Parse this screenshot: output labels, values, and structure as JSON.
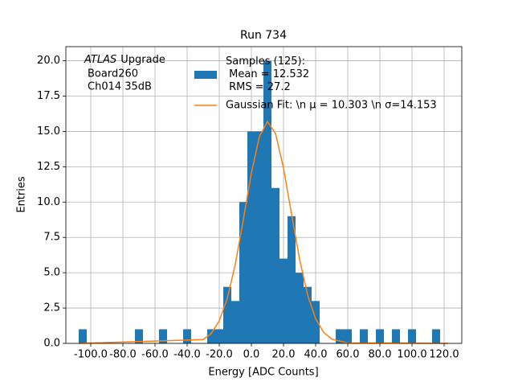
{
  "chart_data": {
    "type": "histogram",
    "title": "Run 734",
    "x_label": "Energy [ADC Counts]",
    "y_label": "Entries",
    "annotation": [
      "ATLAS",
      "Upgrade",
      "Board260",
      "Ch014 35dB"
    ],
    "bins": [
      -107.5,
      -102.5,
      -97.5,
      -92.5,
      -87.5,
      -82.5,
      -77.5,
      -72.5,
      -67.5,
      -62.5,
      -57.5,
      -52.5,
      -47.5,
      -42.5,
      -37.5,
      -32.5,
      -27.5,
      -22.5,
      -17.5,
      -12.5,
      -7.5,
      -2.5,
      2.5,
      7.5,
      12.5,
      17.5,
      22.5,
      27.5,
      32.5,
      37.5,
      42.5,
      47.5,
      52.5,
      57.5,
      62.5,
      67.5,
      72.5,
      77.5,
      82.5,
      87.5,
      92.5,
      97.5,
      102.5,
      107.5,
      112.5,
      117.5,
      122.5
    ],
    "counts": [
      1,
      0,
      0,
      0,
      0,
      0,
      0,
      1,
      0,
      0,
      1,
      0,
      0,
      1,
      0,
      0,
      1,
      1,
      4,
      3,
      10,
      15,
      15,
      20,
      11,
      6,
      9,
      5,
      4,
      3,
      0,
      0,
      1,
      1,
      0,
      1,
      0,
      1,
      0,
      1,
      0,
      1,
      0,
      0,
      1,
      0
    ],
    "color": "#1f77b4",
    "hist_name": "Samples (125):\n Mean = 12.532\n RMS = 27.2",
    "series": [
      {
        "name": "Gaussian Fit: \\n μ = 10.303 \\n σ=14.153",
        "color": "#ff7f0e",
        "x": [
          -107.5,
          -30,
          -25,
          -20,
          -15,
          -10,
          -5,
          0,
          5,
          10,
          15,
          20,
          25,
          30,
          35,
          40,
          45,
          50,
          60,
          122.5
        ],
        "values": [
          0,
          0.27,
          0.7,
          1.59,
          3.18,
          5.61,
          8.76,
          12.05,
          14.64,
          15.7,
          14.86,
          12.41,
          9.16,
          5.96,
          3.42,
          1.74,
          0.78,
          0.31,
          0.03,
          0
        ]
      }
    ],
    "xlim": [
      -115.5,
      131
    ],
    "ylim": [
      0,
      21
    ],
    "xticks": [
      {
        "value": -100,
        "label": "-100.0"
      },
      {
        "value": -80,
        "label": "-80.0"
      },
      {
        "value": -60,
        "label": "-60.0"
      },
      {
        "value": -40,
        "label": "-40.0"
      },
      {
        "value": -20,
        "label": "-20.0"
      },
      {
        "value": 0,
        "label": "0.0"
      },
      {
        "value": 20,
        "label": "20.0"
      },
      {
        "value": 40,
        "label": "40.0"
      },
      {
        "value": 60,
        "label": "60.0"
      },
      {
        "value": 80,
        "label": "80.0"
      },
      {
        "value": 100,
        "label": "100.0"
      },
      {
        "value": 120,
        "label": "120.0"
      }
    ],
    "yticks": [
      {
        "value": 0,
        "label": "0.0"
      },
      2.5,
      {
        "value": 5,
        "label": "5.0"
      },
      7.5,
      {
        "value": 10,
        "label": "10.0"
      },
      12.5,
      {
        "value": 15,
        "label": "15.0"
      },
      17.5,
      {
        "value": 20,
        "label": "20.0"
      }
    ],
    "grid": true
  }
}
